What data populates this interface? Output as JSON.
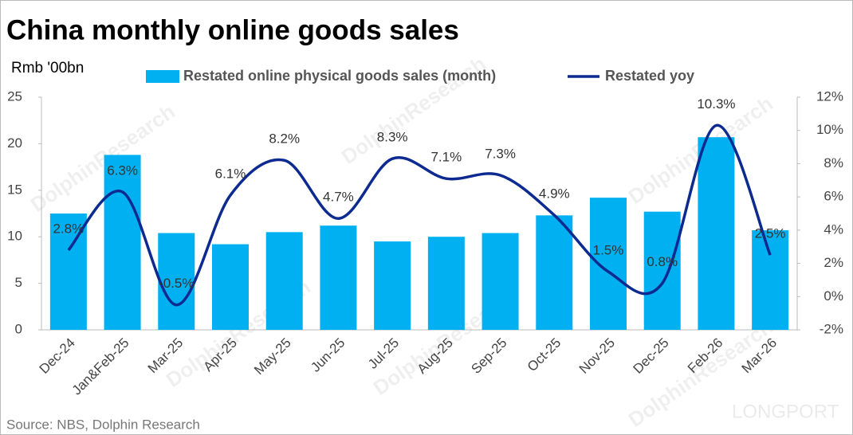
{
  "chart_data": {
    "type": "bar-line",
    "title": "China monthly online goods sales",
    "y_label": "Rmb '00bn",
    "source": "Source: NBS, Dolphin Research",
    "watermarks": [
      "DolphinResearch",
      "LONGPORT"
    ],
    "categories": [
      "Dec-24",
      "Jan&Feb-25",
      "Mar-25",
      "Apr-25",
      "May-25",
      "Jun-25",
      "Jul-25",
      "Aug-25",
      "Sep-25",
      "Oct-25",
      "Nov-25",
      "Dec-25",
      "Feb-26",
      "Mar-26"
    ],
    "series": [
      {
        "name": "Restated online physical goods sales (month)",
        "type": "bar",
        "color": "#00b0f0",
        "values": [
          12.5,
          18.8,
          10.4,
          9.2,
          10.5,
          11.2,
          9.5,
          10.0,
          10.4,
          12.3,
          14.2,
          12.7,
          20.7,
          10.7
        ]
      },
      {
        "name": "Restated yoy",
        "type": "line",
        "axis": "y2",
        "color": "#0c2a8f",
        "values": [
          2.8,
          6.3,
          -0.5,
          6.1,
          8.2,
          4.7,
          8.3,
          7.1,
          7.3,
          4.9,
          1.5,
          0.8,
          10.3,
          2.5
        ],
        "value_labels": [
          "2.8%",
          "6.3%",
          "-0.5%",
          "6.1%",
          "8.2%",
          "4.7%",
          "8.3%",
          "7.1%",
          "7.3%",
          "4.9%",
          "1.5%",
          "0.8%",
          "10.3%",
          "2.5%"
        ]
      }
    ],
    "ylim": [
      0,
      25
    ],
    "yticks": [
      0,
      5,
      10,
      15,
      20,
      25
    ],
    "y2lim": [
      -2,
      12
    ],
    "y2ticks": [
      {
        "value": -2,
        "label": "-2%"
      },
      {
        "value": 0,
        "label": "0%"
      },
      {
        "value": 2,
        "label": "2%"
      },
      {
        "value": 4,
        "label": "4%"
      },
      {
        "value": 6,
        "label": "6%"
      },
      {
        "value": 8,
        "label": "8%"
      },
      {
        "value": 10,
        "label": "10%"
      },
      {
        "value": 12,
        "label": "12%"
      }
    ],
    "grid": false
  }
}
